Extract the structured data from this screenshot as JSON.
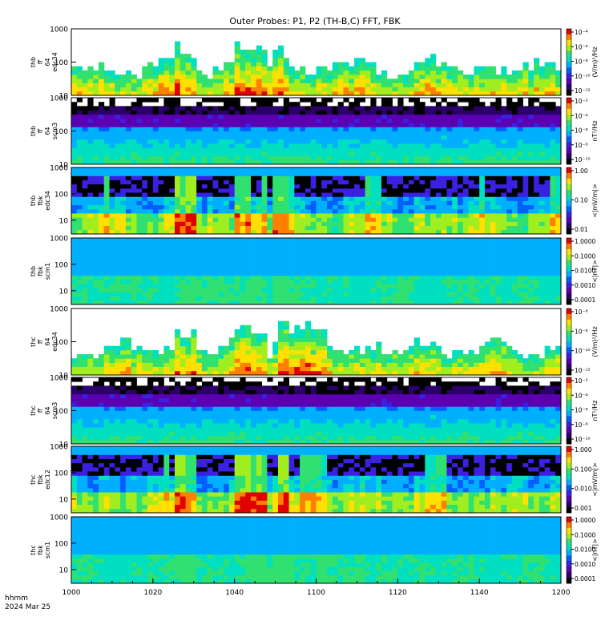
{
  "title": "Outer Probes: P1, P2 (TH-B,C) FFT, FBK",
  "time_axis": {
    "ticks": [
      "1000",
      "1020",
      "1040",
      "1100",
      "1120",
      "1140",
      "1200"
    ],
    "label_line1": "hhmm",
    "label_line2": "2024 Mar 25"
  },
  "chart_data": {
    "type": "heatmap",
    "title": "Outer Probes: P1, P2 (TH-B,C) FFT, FBK",
    "x_range": [
      "10:00",
      "12:00"
    ],
    "panels": [
      {
        "label": [
          "thb",
          "ff",
          "64",
          "edc34"
        ],
        "y_ticks": [
          "1000",
          "100",
          "10"
        ],
        "y_range": [
          10,
          1000
        ],
        "cbar_ticks": [
          "10⁻⁴",
          "10⁻⁶",
          "10⁻⁸",
          "10⁻¹⁰",
          "10⁻¹²"
        ],
        "cbar_label": "(V/m)²/Hz",
        "style": "efield_fft"
      },
      {
        "label": [
          "thb",
          "ff",
          "64",
          "scm3"
        ],
        "y_ticks": [
          "1000",
          "100",
          "10"
        ],
        "y_range": [
          10,
          1000
        ],
        "cbar_ticks": [
          "10⁻²",
          "10⁻⁴",
          "10⁻⁶",
          "10⁻⁸",
          "10⁻¹⁰"
        ],
        "cbar_label": "nT²/Hz",
        "style": "scm_fft"
      },
      {
        "label": [
          "thb",
          "fbk",
          "edc34"
        ],
        "y_ticks": [
          "1000",
          "100",
          "10"
        ],
        "y_range": [
          3,
          1000
        ],
        "cbar_ticks": [
          "1.00",
          "0.10",
          "0.01"
        ],
        "cbar_label": "<|mV/m|>",
        "style": "efield_fbk"
      },
      {
        "label": [
          "thb",
          "fbk",
          "scm1"
        ],
        "y_ticks": [
          "1000",
          "100",
          "10"
        ],
        "y_range": [
          3,
          1000
        ],
        "cbar_ticks": [
          "1.0000",
          "0.1000",
          "0.0100",
          "0.0010",
          "0.0001"
        ],
        "cbar_label": "<|nT|>",
        "style": "scm_fbk"
      },
      {
        "label": [
          "thc",
          "ff",
          "64",
          "edc34"
        ],
        "y_ticks": [
          "1000",
          "100",
          "10"
        ],
        "y_range": [
          10,
          1000
        ],
        "cbar_ticks": [
          "10⁻⁶",
          "10⁻⁸",
          "10⁻¹⁰",
          "10⁻¹²"
        ],
        "cbar_label": "(V/m)²/Hz",
        "style": "efield_fft"
      },
      {
        "label": [
          "thc",
          "ff",
          "64",
          "scm3"
        ],
        "y_ticks": [
          "1000",
          "100",
          "10"
        ],
        "y_range": [
          10,
          1000
        ],
        "cbar_ticks": [
          "10⁻²",
          "10⁻⁴",
          "10⁻⁶",
          "10⁻⁸",
          "10⁻¹⁰"
        ],
        "cbar_label": "nT²/Hz",
        "style": "scm_fft"
      },
      {
        "label": [
          "thc",
          "fbk",
          "edc12"
        ],
        "y_ticks": [
          "1000",
          "100",
          "10"
        ],
        "y_range": [
          3,
          1000
        ],
        "cbar_ticks": [
          "1.000",
          "0.100",
          "0.010",
          "0.001"
        ],
        "cbar_label": "<|mV/m|>",
        "style": "efield_fbk"
      },
      {
        "label": [
          "thc",
          "fbk",
          "scm1"
        ],
        "y_ticks": [
          "1000",
          "100",
          "10"
        ],
        "y_range": [
          3,
          1000
        ],
        "cbar_ticks": [
          "1.0000",
          "0.1000",
          "0.0100",
          "0.0010",
          "0.0001"
        ],
        "cbar_label": "<|nT|>",
        "style": "scm_fbk"
      }
    ],
    "colormap": [
      "#000000",
      "#2b006b",
      "#5a00b0",
      "#3a20e0",
      "#0060ff",
      "#00b0ff",
      "#00e0c0",
      "#30e070",
      "#a0ee20",
      "#ffe000",
      "#ff8000",
      "#e00000"
    ]
  }
}
